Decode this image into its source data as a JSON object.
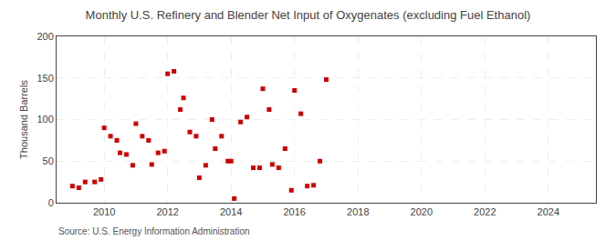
{
  "chart_data": {
    "type": "scatter",
    "title": "Monthly U.S. Refinery and Blender Net Input of Oxygenates (excluding Fuel Ethanol)",
    "y_label": "Thousand Barrels",
    "annotations": [
      "Source: U.S. Energy Information Administration"
    ],
    "color": "#cc0000",
    "marker": "square",
    "grid": true,
    "xlim": [
      2008.5,
      2025.5
    ],
    "xticks": [
      2010,
      2012,
      2014,
      2016,
      2018,
      2020,
      2022,
      2024
    ],
    "ylim": [
      0,
      200
    ],
    "yticks": [
      0,
      50,
      100,
      150,
      200
    ],
    "x": [
      2009.0,
      2009.2,
      2009.4,
      2009.7,
      2009.9,
      2010.0,
      2010.2,
      2010.4,
      2010.5,
      2010.7,
      2010.9,
      2011.0,
      2011.2,
      2011.4,
      2011.5,
      2011.7,
      2011.9,
      2012.0,
      2012.2,
      2012.4,
      2012.5,
      2012.7,
      2012.9,
      2013.0,
      2013.2,
      2013.4,
      2013.5,
      2013.7,
      2013.9,
      2014.0,
      2014.1,
      2014.3,
      2014.5,
      2014.7,
      2014.9,
      2015.0,
      2015.2,
      2015.3,
      2015.5,
      2015.7,
      2015.9,
      2016.0,
      2016.2,
      2016.4,
      2016.6,
      2016.8,
      2017.0
    ],
    "values": [
      20,
      18,
      25,
      25,
      28,
      90,
      80,
      75,
      60,
      58,
      45,
      95,
      80,
      75,
      46,
      60,
      62,
      155,
      158,
      112,
      126,
      85,
      80,
      30,
      45,
      100,
      65,
      80,
      50,
      50,
      5,
      97,
      103,
      42,
      42,
      137,
      112,
      46,
      42,
      65,
      15,
      135,
      107,
      20,
      21,
      50,
      148
    ]
  }
}
